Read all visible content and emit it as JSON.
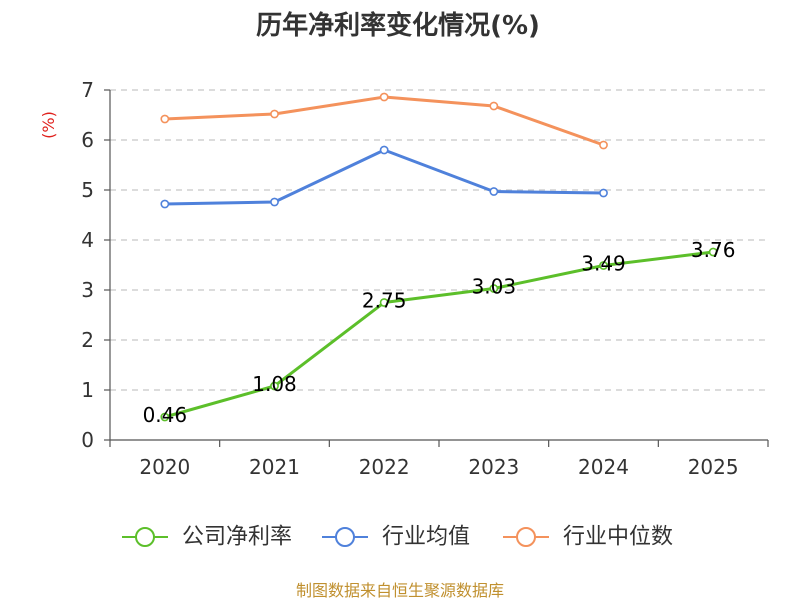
{
  "chart_data": {
    "type": "line",
    "title": "历年净利率变化情况(%)",
    "xlabel": "",
    "ylabel": "(%)",
    "categories": [
      "2020",
      "2021",
      "2022",
      "2023",
      "2024",
      "2025"
    ],
    "ylim": [
      0,
      7
    ],
    "yticks": [
      0,
      1,
      2,
      3,
      4,
      5,
      6,
      7
    ],
    "grid": true,
    "legend_position": "bottom",
    "series": [
      {
        "name": "公司净利率",
        "color": "#5cbf2a",
        "values": [
          0.46,
          1.08,
          2.75,
          3.03,
          3.49,
          3.76
        ],
        "data_labels": true
      },
      {
        "name": "行业均值",
        "color": "#4f81db",
        "values": [
          4.72,
          4.76,
          5.8,
          4.97,
          4.94,
          null
        ],
        "data_labels": false
      },
      {
        "name": "行业中位数",
        "color": "#f4925c",
        "values": [
          6.42,
          6.52,
          6.86,
          6.68,
          5.9,
          null
        ],
        "data_labels": false
      }
    ],
    "colors": {
      "axis": "#555555",
      "grid": "#c8c8c8"
    }
  },
  "footer": {
    "source": "制图数据来自恒生聚源数据库"
  }
}
